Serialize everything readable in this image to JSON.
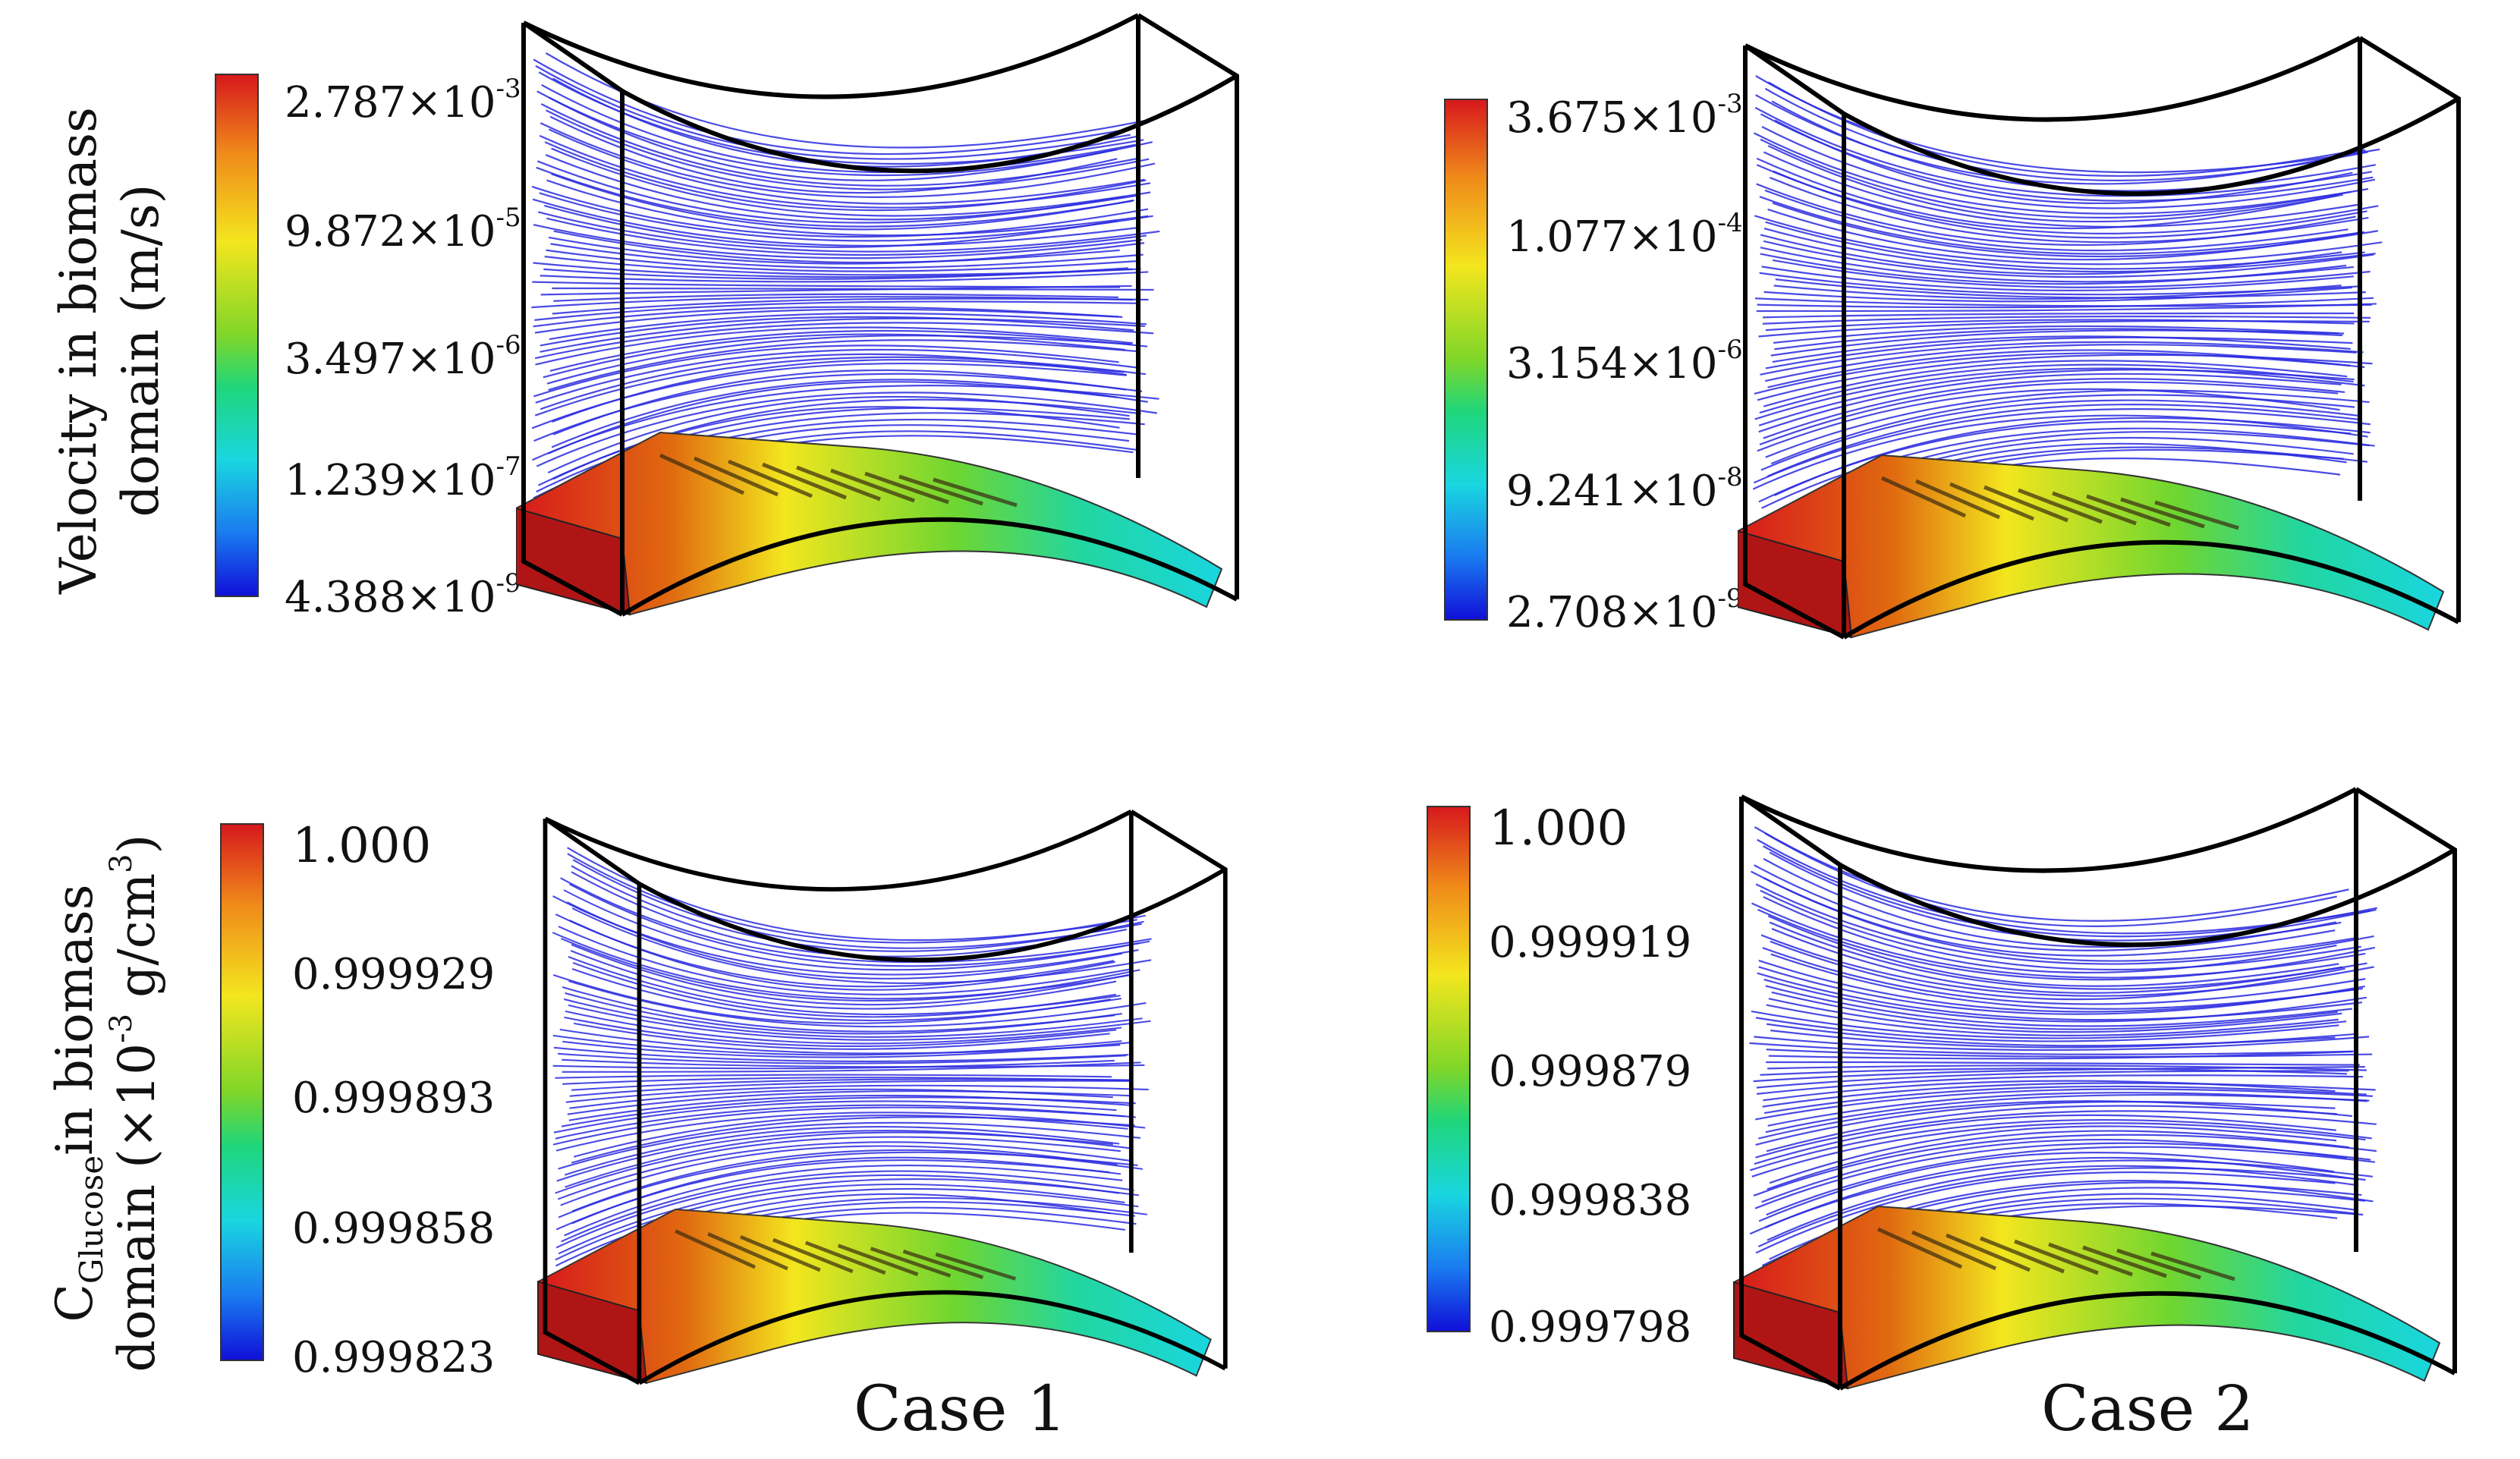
{
  "axis_labels": {
    "velocity": {
      "line1": "Velocity in biomass",
      "line2": "domain (m/s)"
    },
    "glucose": {
      "c": "C",
      "subscript": "Glucose",
      "line1_rest": "in biomass",
      "line2_prefix": "domain (×10",
      "exp1": "-3",
      "line2_mid": " g/cm",
      "exp2": "3",
      "line2_suffix": ")"
    }
  },
  "colorbars": {
    "velocity_case1": [
      {
        "mantissa": "2.787×10",
        "exp": "-3"
      },
      {
        "mantissa": "9.872×10",
        "exp": "-5"
      },
      {
        "mantissa": "3.497×10",
        "exp": "-6"
      },
      {
        "mantissa": "1.239×10",
        "exp": "-7"
      },
      {
        "mantissa": "4.388×10",
        "exp": "-9"
      }
    ],
    "velocity_case2": [
      {
        "mantissa": "3.675×10",
        "exp": "-3"
      },
      {
        "mantissa": "1.077×10",
        "exp": "-4"
      },
      {
        "mantissa": "3.154×10",
        "exp": "-6"
      },
      {
        "mantissa": "9.241×10",
        "exp": "-8"
      },
      {
        "mantissa": "2.708×10",
        "exp": "-9"
      }
    ],
    "glucose_case1": [
      "1.000",
      "0.999929",
      "0.999893",
      "0.999858",
      "0.999823"
    ],
    "glucose_case2": [
      "1.000",
      "0.999919",
      "0.999879",
      "0.999838",
      "0.999798"
    ]
  },
  "case_labels": {
    "case1": "Case 1",
    "case2": "Case 2"
  },
  "colors": {
    "streamline": "#2a2ae0",
    "frame": "#000000",
    "field_high": "#d7191c",
    "field_mid": "#f3e61e",
    "field_low": "#19d6e0"
  }
}
